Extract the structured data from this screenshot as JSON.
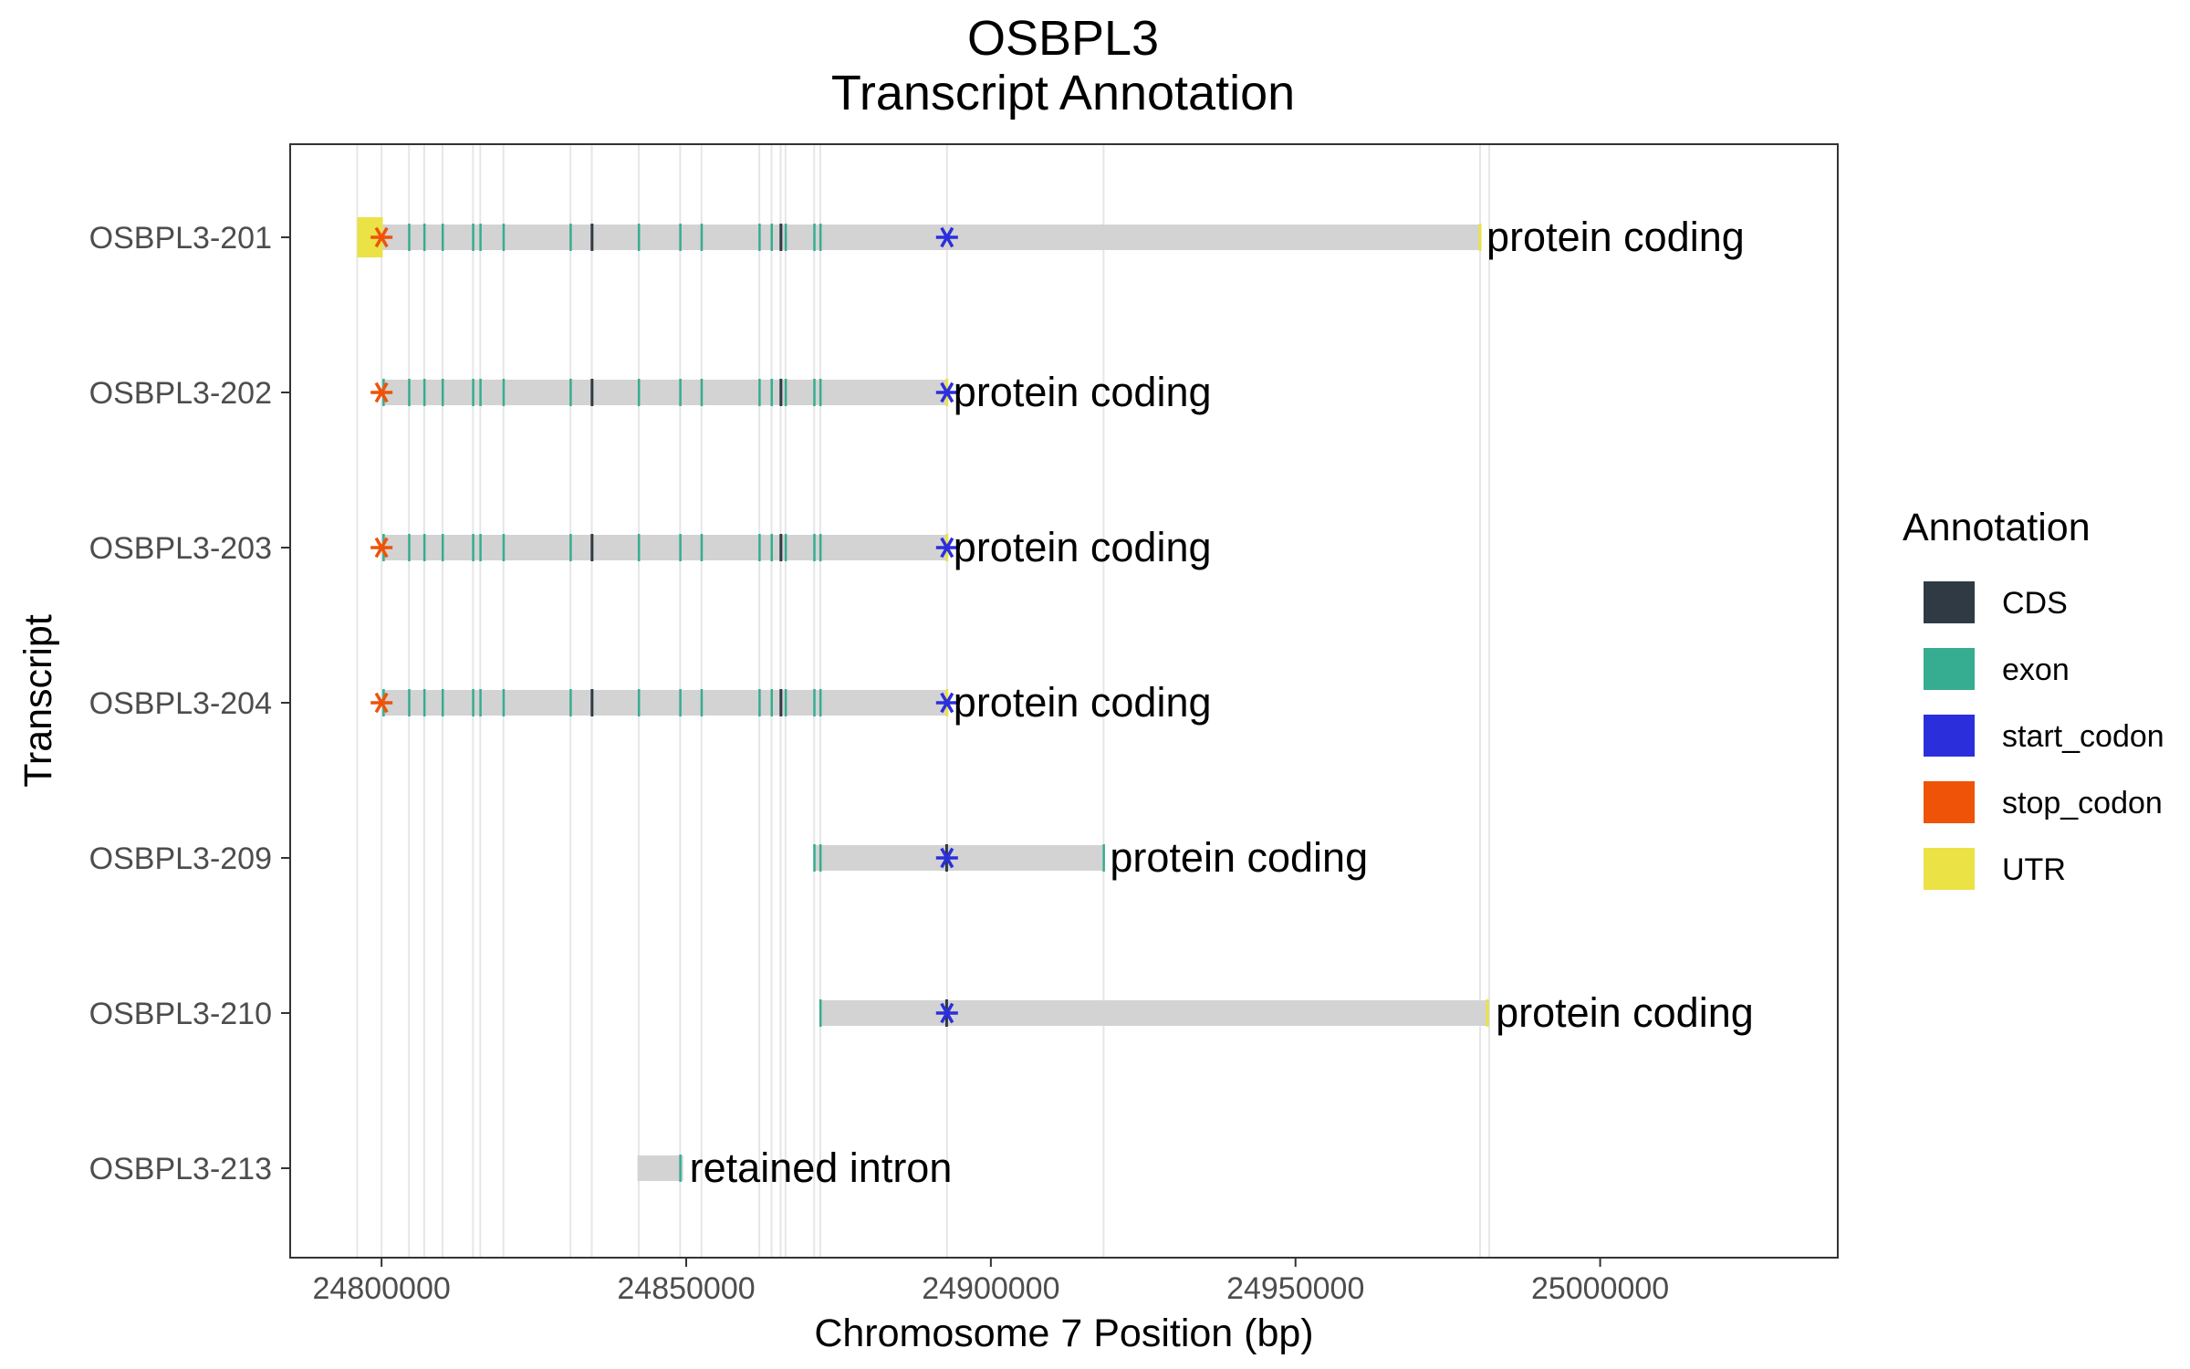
{
  "chart_data": {
    "type": "gantt",
    "title": [
      "OSBPL3",
      "Transcript Annotation"
    ],
    "xlabel": "Chromosome 7 Position (bp)",
    "ylabel": "Transcript",
    "xlim": [
      24785000,
      25039000
    ],
    "x_ticks": [
      24800000,
      24850000,
      24900000,
      24950000,
      25000000
    ],
    "x_tick_labels": [
      "24800000",
      "24850000",
      "24900000",
      "24950000",
      "25000000"
    ],
    "grid": true,
    "legend_position": "right",
    "legend": {
      "title": "Annotation",
      "items": [
        {
          "label": "CDS",
          "color": "#2f3a44"
        },
        {
          "label": "exon",
          "color": "#36ad90"
        },
        {
          "label": "start_codon",
          "color": "#2b2fdb"
        },
        {
          "label": "stop_codon",
          "color": "#ef5308"
        },
        {
          "label": "UTR",
          "color": "#ebe245"
        }
      ]
    },
    "gridlines_x": [
      24796000,
      24800000,
      24804500,
      24807000,
      24810000,
      24815000,
      24816200,
      24820000,
      24831000,
      24834500,
      24842200,
      24849000,
      24852500,
      24862000,
      24864000,
      24865500,
      24866300,
      24871000,
      24872000,
      24892800,
      24918500,
      24980300,
      24981800
    ],
    "transcripts": [
      {
        "name": "OSBPL3-213",
        "biotype": "retained intron",
        "start": 24842000,
        "end": 24849500,
        "exons": [
          24849000
        ],
        "cds": [],
        "utr": [],
        "start_codon": null,
        "stop_codon": null
      },
      {
        "name": "OSBPL3-210",
        "biotype": "protein coding",
        "start": 24872000,
        "end": 24981800,
        "exons": [
          24872000
        ],
        "cds": [
          24892700
        ],
        "utr": [
          24981500
        ],
        "start_codon": 24892800,
        "stop_codon": null
      },
      {
        "name": "OSBPL3-209",
        "biotype": "protein coding",
        "start": 24871000,
        "end": 24918500,
        "exons": [
          24871000,
          24872000,
          24918500
        ],
        "cds": [
          24892700
        ],
        "utr": [],
        "start_codon": 24892800,
        "stop_codon": null
      },
      {
        "name": "OSBPL3-204",
        "biotype": "protein coding",
        "start": 24800000,
        "end": 24892800,
        "exons": [
          24800300,
          24804500,
          24807000,
          24810000,
          24815000,
          24816200,
          24820000,
          24831000,
          24834500,
          24842200,
          24849000,
          24852500,
          24862000,
          24864000,
          24865500,
          24866300,
          24871000,
          24872000
        ],
        "cds": [
          24834500,
          24865500
        ],
        "utr": [
          24892800
        ],
        "start_codon": 24892800,
        "stop_codon": 24800000
      },
      {
        "name": "OSBPL3-203",
        "biotype": "protein coding",
        "start": 24800000,
        "end": 24892800,
        "exons": [
          24800300,
          24804500,
          24807000,
          24810000,
          24815000,
          24816200,
          24820000,
          24831000,
          24834500,
          24842200,
          24849000,
          24852500,
          24862000,
          24864000,
          24865500,
          24866300,
          24871000,
          24872000
        ],
        "cds": [
          24834500,
          24865500
        ],
        "utr": [
          24892800
        ],
        "start_codon": 24892800,
        "stop_codon": 24800000
      },
      {
        "name": "OSBPL3-202",
        "biotype": "protein coding",
        "start": 24800000,
        "end": 24892800,
        "exons": [
          24800300,
          24804500,
          24807000,
          24810000,
          24815000,
          24816200,
          24820000,
          24831000,
          24834500,
          24842200,
          24849000,
          24852500,
          24862000,
          24864000,
          24865500,
          24866300,
          24871000,
          24872000
        ],
        "cds": [
          24834500,
          24865500
        ],
        "utr": [
          24892800
        ],
        "start_codon": 24892800,
        "stop_codon": 24800000
      },
      {
        "name": "OSBPL3-201",
        "biotype": "protein coding",
        "start": 24796000,
        "end": 24980300,
        "exons": [
          24804500,
          24807000,
          24810000,
          24815000,
          24816200,
          24820000,
          24831000,
          24834500,
          24842200,
          24849000,
          24852500,
          24862000,
          24864000,
          24865500,
          24866300,
          24871000,
          24872000
        ],
        "cds": [
          24834500,
          24865500
        ],
        "utr": [
          [
            24796000,
            24800200
          ],
          24980300
        ],
        "start_codon": 24892800,
        "stop_codon": 24800000
      }
    ]
  }
}
